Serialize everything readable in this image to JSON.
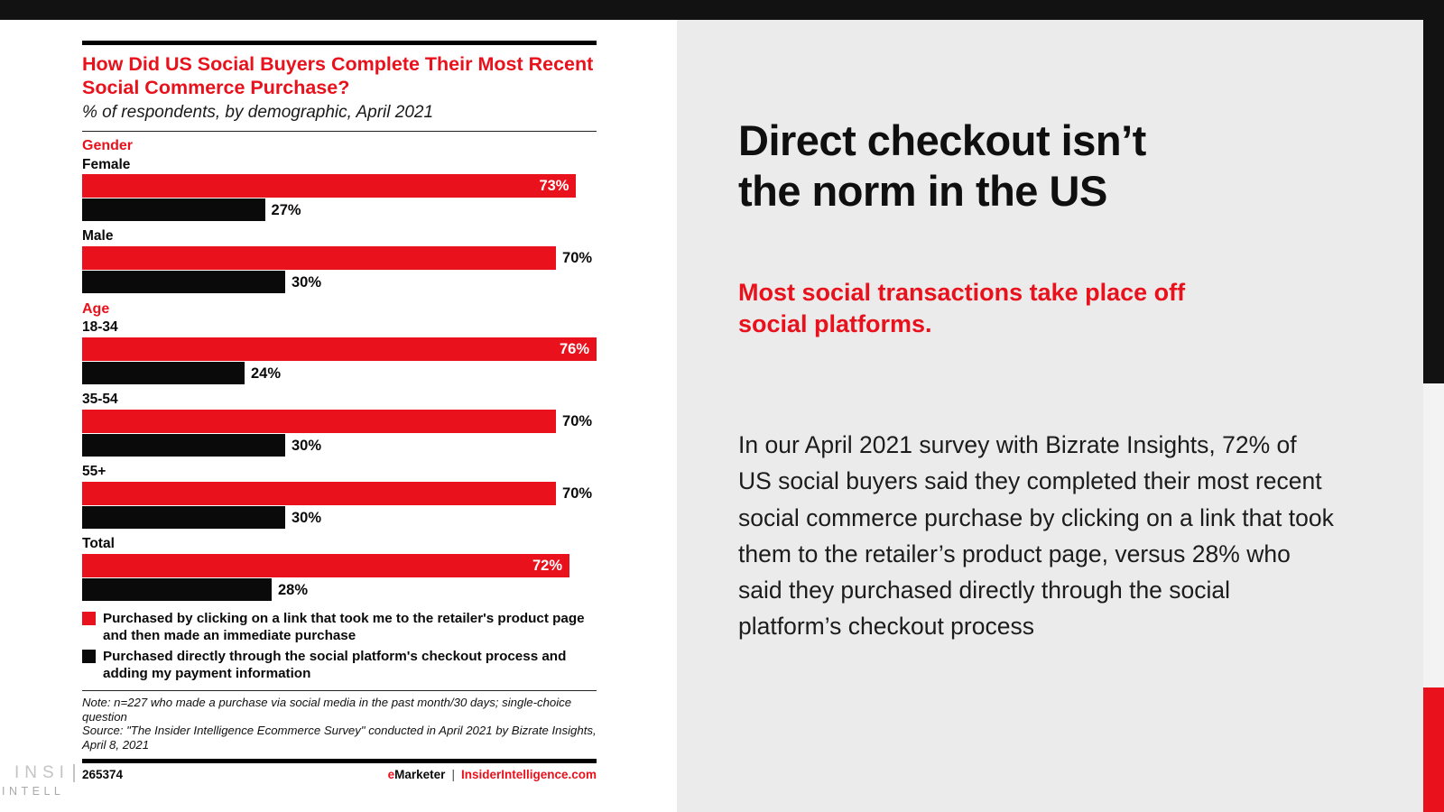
{
  "slide": {
    "headline": {
      "line1": "Direct checkout isn’t",
      "line2": "the norm in the US"
    },
    "subhead": {
      "line1": "Most social transactions take place off",
      "line2": "social platforms."
    },
    "body": "In our April 2021 survey with Bizrate Insights, 72% of US social buyers said they completed their most recent social commerce purchase by clicking on a link that took them to the retailer’s product page, versus 28% who said they purchased directly through the social platform’s checkout process"
  },
  "chart_data": {
    "type": "bar",
    "orientation": "horizontal",
    "title": "How Did US Social Buyers Complete Their Most Recent Social Commerce Purchase?",
    "subtitle": "% of respondents, by demographic, April 2021",
    "unit": "%",
    "xlim": [
      0,
      76
    ],
    "grid": false,
    "legend_position": "bottom",
    "series": [
      {
        "name": "Purchased by clicking on a link that took me to the retailer's product page and then made an immediate purchase",
        "color": "#e8111c"
      },
      {
        "name": "Purchased directly through the social platform's checkout process and adding my payment information",
        "color": "#0a0a0a"
      }
    ],
    "sections": [
      {
        "header": "Gender",
        "rows": [
          {
            "label": "Female",
            "values": [
              73,
              27
            ],
            "inside": [
              true,
              false
            ]
          },
          {
            "label": "Male",
            "values": [
              70,
              30
            ],
            "inside": [
              false,
              false
            ]
          }
        ]
      },
      {
        "header": "Age",
        "rows": [
          {
            "label": "18-34",
            "values": [
              76,
              24
            ],
            "inside": [
              true,
              false
            ]
          },
          {
            "label": "35-54",
            "values": [
              70,
              30
            ],
            "inside": [
              false,
              false
            ]
          },
          {
            "label": "55+",
            "values": [
              70,
              30
            ],
            "inside": [
              false,
              false
            ]
          }
        ]
      },
      {
        "header": "",
        "rows": [
          {
            "label": "Total",
            "values": [
              72,
              28
            ],
            "inside": [
              true,
              false
            ]
          }
        ]
      }
    ],
    "note": "Note: n=227 who made a purchase via social media in the past month/30 days; single-choice question",
    "source": "Source: \"The Insider Intelligence Ecommerce Survey\" conducted in April 2021 by Bizrate Insights, April 8, 2021"
  },
  "footer": {
    "chart_id": "265374",
    "brand_e": "e",
    "brand_rest": "Marketer",
    "separator": "|",
    "site": "InsiderIntelligence.com"
  },
  "watermark": {
    "line1": "INSI",
    "line2": "INTELL"
  },
  "colors": {
    "accent_red": "#e8111c",
    "bar_black": "#0a0a0a",
    "top_bar": "#121212",
    "left_bg": "#ffffff",
    "right_bg": "#ebebeb",
    "strip_gray": "#f3f3f3",
    "logo_gray": "#c4c4c4"
  }
}
